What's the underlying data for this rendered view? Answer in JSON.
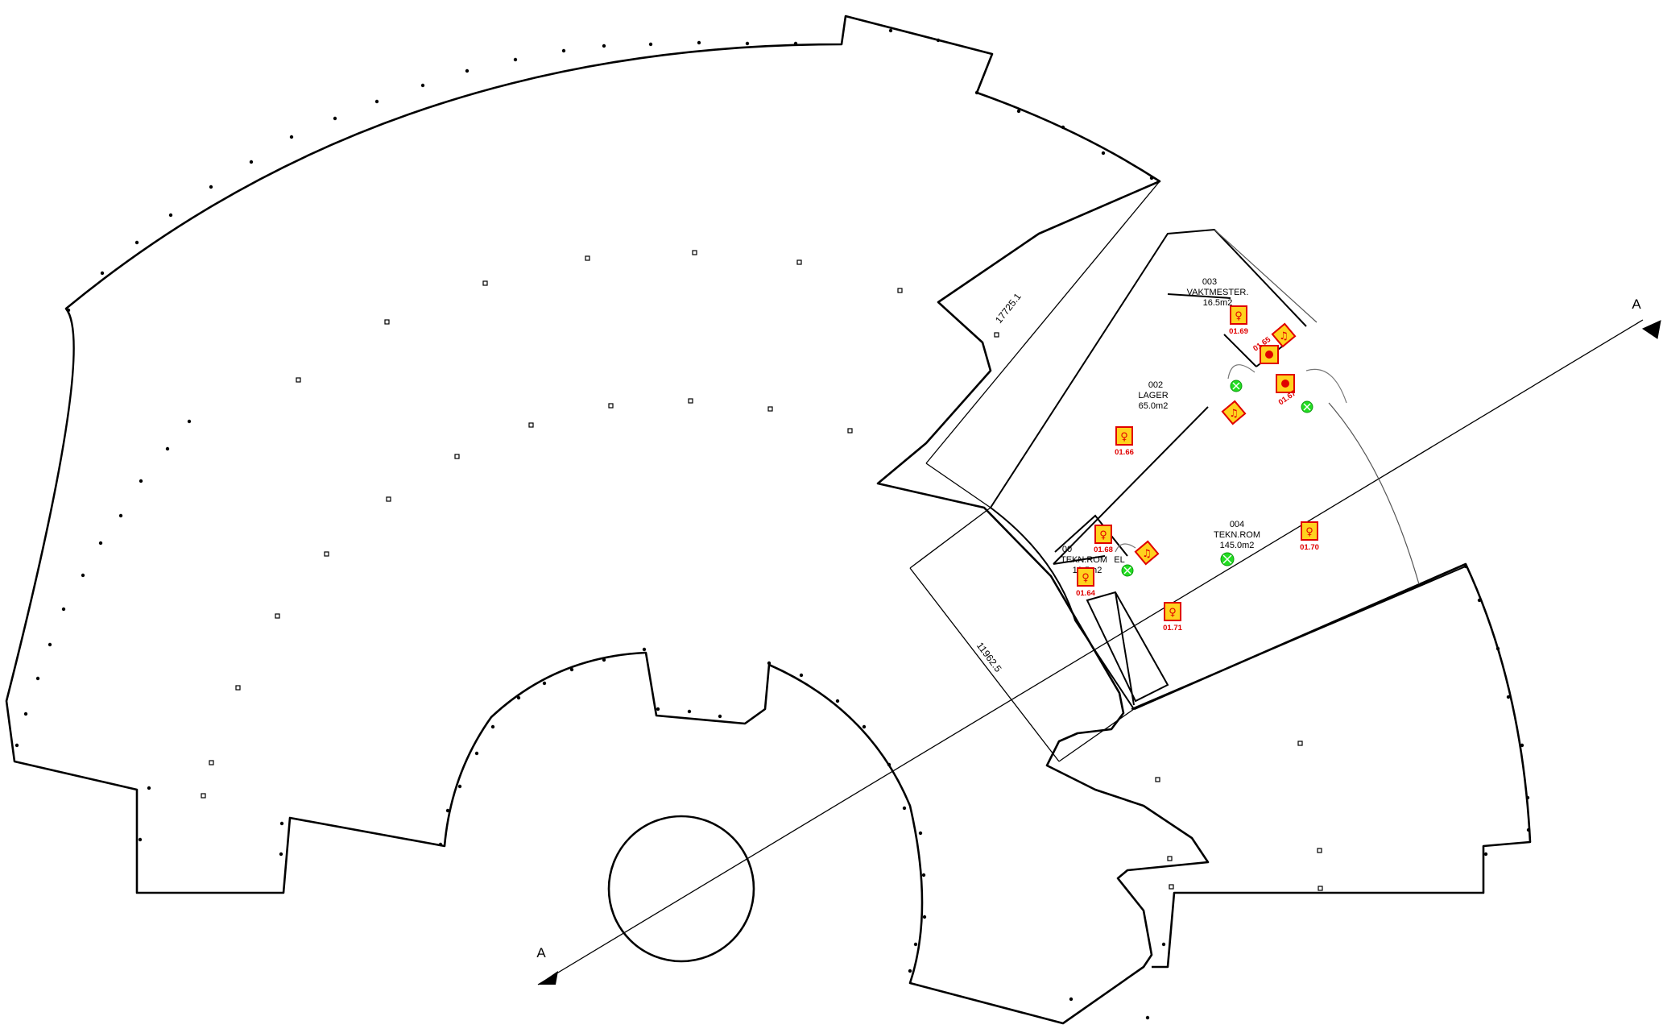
{
  "drawing": {
    "section_marker_label": "A",
    "dimension_1": "17725.1",
    "dimension_2": "11962.5"
  },
  "rooms": [
    {
      "id": "003",
      "name": "VAKTMESTER.",
      "area": "16.5m2"
    },
    {
      "id": "002",
      "name": "LAGER",
      "area": "65.0m2"
    },
    {
      "id": "001",
      "name": "TEKN.ROM",
      "area": "10.5m2"
    },
    {
      "id": "004",
      "name": "TEKN.ROM",
      "area": "145.0m2"
    }
  ],
  "room_labels": {
    "room_001_prefix": "00",
    "el": "EL"
  },
  "safety_symbols": [
    {
      "code": "01.69",
      "icon": "fire-extinguisher-icon"
    },
    {
      "code": "01.66",
      "icon": "fire-extinguisher-icon"
    },
    {
      "code": "01.68",
      "icon": "fire-extinguisher-icon"
    },
    {
      "code": "01.64",
      "icon": "fire-extinguisher-icon"
    },
    {
      "code": "01.70",
      "icon": "fire-extinguisher-icon"
    },
    {
      "code": "01.71",
      "icon": "fire-extinguisher-icon"
    },
    {
      "code": "01.65",
      "icon": "fire-alarm-button-icon"
    },
    {
      "code": "01.67",
      "icon": "fire-alarm-button-icon"
    }
  ],
  "colors": {
    "symbol_fill": "#ffd21e",
    "symbol_stroke": "#e00000",
    "exit_marker": "#22dd22"
  }
}
